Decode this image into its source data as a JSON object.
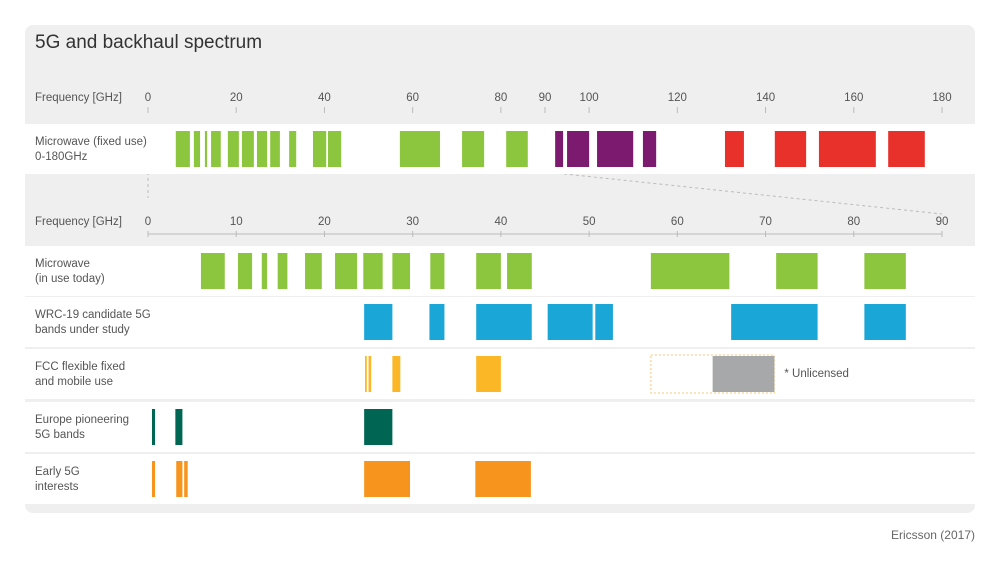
{
  "title": "5G and backhaul spectrum",
  "axes": [
    {
      "label": "Frequency [GHz]",
      "range": [
        0,
        180
      ],
      "ticks": [
        0,
        20,
        40,
        60,
        80,
        90,
        100,
        120,
        140,
        160,
        180
      ]
    },
    {
      "label": "Frequency [GHz]",
      "range": [
        0,
        90
      ],
      "ticks": [
        0,
        10,
        20,
        30,
        40,
        50,
        60,
        70,
        80,
        90
      ]
    }
  ],
  "rows": [
    {
      "lines": [
        "Microwave (fixed use)",
        "0-180GHz"
      ],
      "axis": 0,
      "color": "#8cc63f",
      "bands": [
        {
          "start": 6.3,
          "end": 9.5
        },
        {
          "start": 10.4,
          "end": 11.8
        },
        {
          "start": 12.9,
          "end": 13.4
        },
        {
          "start": 14.3,
          "end": 16.5
        },
        {
          "start": 18.1,
          "end": 20.6
        },
        {
          "start": 21.3,
          "end": 24
        },
        {
          "start": 24.7,
          "end": 27
        },
        {
          "start": 27.7,
          "end": 29.9
        },
        {
          "start": 32,
          "end": 33.6
        },
        {
          "start": 37.4,
          "end": 40.4
        },
        {
          "start": 40.8,
          "end": 43.8
        },
        {
          "start": 57.1,
          "end": 66.2
        },
        {
          "start": 71.2,
          "end": 76.2
        },
        {
          "start": 81.2,
          "end": 86.1
        },
        {
          "start": 92.3,
          "end": 94.1,
          "color": "#7b1a6e"
        },
        {
          "start": 95,
          "end": 100,
          "color": "#7b1a6e"
        },
        {
          "start": 101.8,
          "end": 110,
          "color": "#7b1a6e"
        },
        {
          "start": 112.2,
          "end": 115.2,
          "color": "#7b1a6e"
        },
        {
          "start": 130.8,
          "end": 135.1,
          "color": "#e8312a"
        },
        {
          "start": 142.1,
          "end": 149.2,
          "color": "#e8312a"
        },
        {
          "start": 152.1,
          "end": 165,
          "color": "#e8312a"
        },
        {
          "start": 167.8,
          "end": 176.1,
          "color": "#e8312a"
        }
      ]
    },
    {
      "lines": [
        "Microwave",
        "(in use today)"
      ],
      "axis": 1,
      "color": "#8cc63f",
      "bands": [
        {
          "start": 6,
          "end": 8.7
        },
        {
          "start": 10.2,
          "end": 11.8
        },
        {
          "start": 12.9,
          "end": 13.5
        },
        {
          "start": 14.7,
          "end": 15.8
        },
        {
          "start": 17.8,
          "end": 19.7
        },
        {
          "start": 21.2,
          "end": 23.7
        },
        {
          "start": 24.4,
          "end": 26.6
        },
        {
          "start": 27.7,
          "end": 29.7
        },
        {
          "start": 32,
          "end": 33.6
        },
        {
          "start": 37.2,
          "end": 40
        },
        {
          "start": 40.7,
          "end": 43.5
        },
        {
          "start": 57,
          "end": 65.9
        },
        {
          "start": 71.2,
          "end": 75.9
        },
        {
          "start": 81.2,
          "end": 85.9
        }
      ]
    },
    {
      "lines": [
        "WRC-19 candidate 5G",
        "bands under study"
      ],
      "axis": 1,
      "color": "#1aa7d8",
      "bands": [
        {
          "start": 24.5,
          "end": 27.7
        },
        {
          "start": 31.9,
          "end": 33.6
        },
        {
          "start": 37.2,
          "end": 43.5
        },
        {
          "start": 45.3,
          "end": 50.4
        },
        {
          "start": 50.7,
          "end": 52.7
        },
        {
          "start": 66.1,
          "end": 75.9
        },
        {
          "start": 81.2,
          "end": 85.9
        }
      ]
    },
    {
      "lines": [
        "FCC flexible fixed",
        "and mobile use"
      ],
      "axis": 1,
      "color": "#fbb725",
      "bands": [
        {
          "start": 24.6,
          "end": 24.8
        },
        {
          "start": 25,
          "end": 25.3
        },
        {
          "start": 27.7,
          "end": 28.6
        },
        {
          "start": 37.2,
          "end": 40
        },
        {
          "start": 64,
          "end": 71,
          "color": "#a7a8aa"
        }
      ],
      "unlicensed": {
        "start": 57,
        "end": 71,
        "note": "* Unlicensed"
      }
    },
    {
      "lines": [
        "Europe pioneering",
        "5G bands"
      ],
      "axis": 1,
      "color": "#006654",
      "bands": [
        {
          "start": 0.45,
          "end": 0.8
        },
        {
          "start": 3.1,
          "end": 3.9
        },
        {
          "start": 24.5,
          "end": 27.7
        }
      ]
    },
    {
      "lines": [
        "Early 5G",
        "interests"
      ],
      "axis": 1,
      "color": "#f7941d",
      "bands": [
        {
          "start": 0.45,
          "end": 0.8
        },
        {
          "start": 3.2,
          "end": 3.9
        },
        {
          "start": 4.1,
          "end": 4.5
        },
        {
          "start": 24.5,
          "end": 29.7
        },
        {
          "start": 37.1,
          "end": 43.4
        }
      ]
    }
  ],
  "source": "Ericsson (2017)"
}
